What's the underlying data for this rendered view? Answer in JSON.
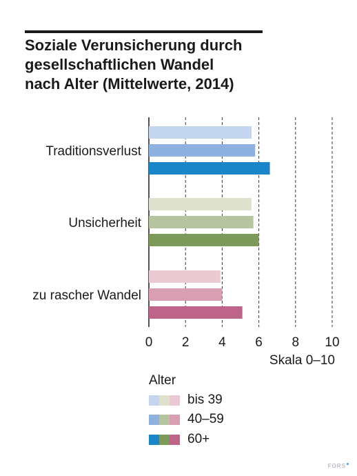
{
  "title_lines": [
    "Soziale Verunsicherung durch",
    "gesellschaftlichen Wandel",
    "nach Alter (Mittelwerte, 2014)"
  ],
  "chart_data": {
    "type": "bar",
    "orientation": "horizontal",
    "title": "Soziale Verunsicherung durch gesellschaftlichen Wandel nach Alter (Mittelwerte, 2014)",
    "categories": [
      "Traditionsverlust",
      "Unsicherheit",
      "zu rascher Wandel"
    ],
    "series": [
      {
        "name": "bis 39",
        "values": [
          5.6,
          5.6,
          3.9
        ]
      },
      {
        "name": "40–59",
        "values": [
          5.8,
          5.7,
          4.0
        ]
      },
      {
        "name": "60+",
        "values": [
          6.6,
          6.0,
          5.1
        ]
      }
    ],
    "colors": [
      [
        "#c4d5ef",
        "#8eb1df",
        "#1a85c8"
      ],
      [
        "#dfe1cf",
        "#b6c59f",
        "#7d9a5b"
      ],
      [
        "#ebc9d2",
        "#d79fb1",
        "#bd6488"
      ]
    ],
    "xlim": [
      0,
      10
    ],
    "xticks": [
      "0",
      "2",
      "4",
      "6",
      "8",
      "10"
    ],
    "xtick_values": [
      0,
      2,
      4,
      6,
      8,
      10
    ],
    "xlabel": "Skala 0–10",
    "grid": true,
    "legend": {
      "title": "Alter",
      "placement": "bottom",
      "entries": [
        "bis 39",
        "40–59",
        "60+"
      ]
    }
  },
  "brand": "FORS"
}
